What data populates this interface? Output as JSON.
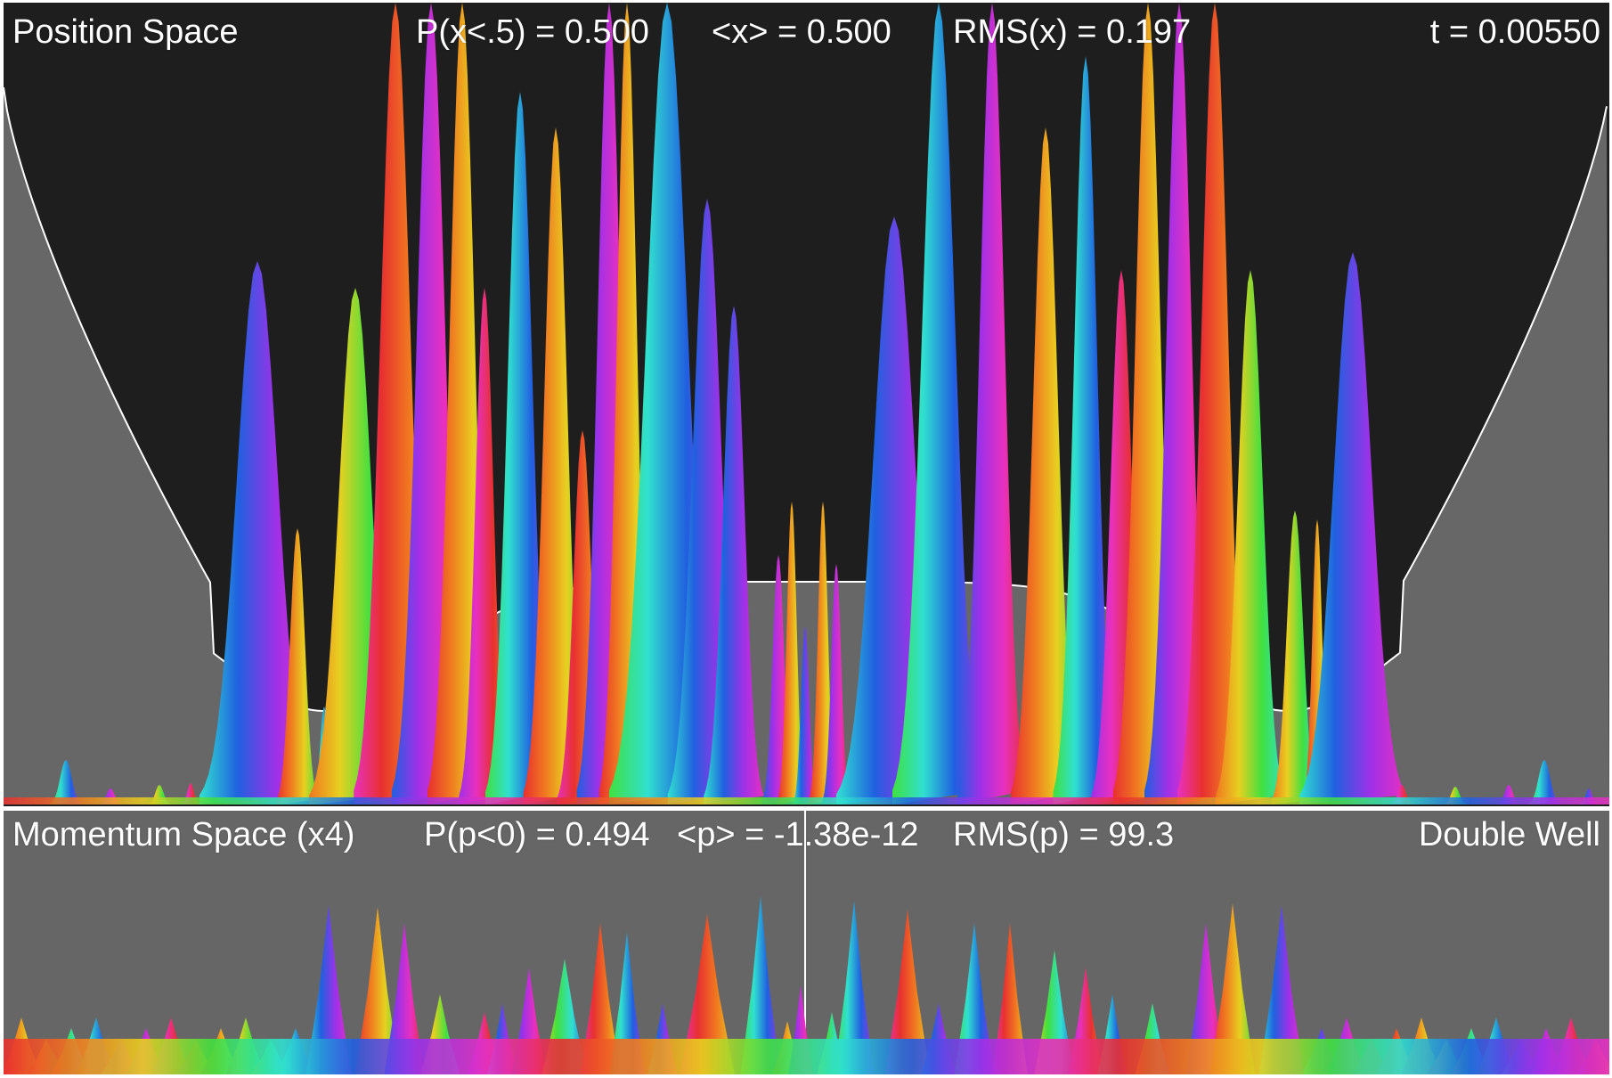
{
  "position_panel": {
    "title": "Position Space",
    "prob_left": "P(x<.5) = 0.500",
    "mean": "<x> = 0.500",
    "rms": "RMS(x) = 0.197",
    "time": "t = 0.00550",
    "background": "#1e1e1e",
    "potential_fill": "#676767",
    "potential_line": "#ffffff"
  },
  "momentum_panel": {
    "title": "Momentum Space (x4)",
    "prob_negative": "P(p<0) = 0.494",
    "mean": "<p> = -1.38e-12",
    "rms": "RMS(p) = 99.3",
    "mode": "Double Well",
    "background": "#666666"
  },
  "palette": [
    "#e83030",
    "#f07820",
    "#e8d020",
    "#40e040",
    "#30e0d0",
    "#2060e0",
    "#a030e8",
    "#e830c0"
  ]
}
